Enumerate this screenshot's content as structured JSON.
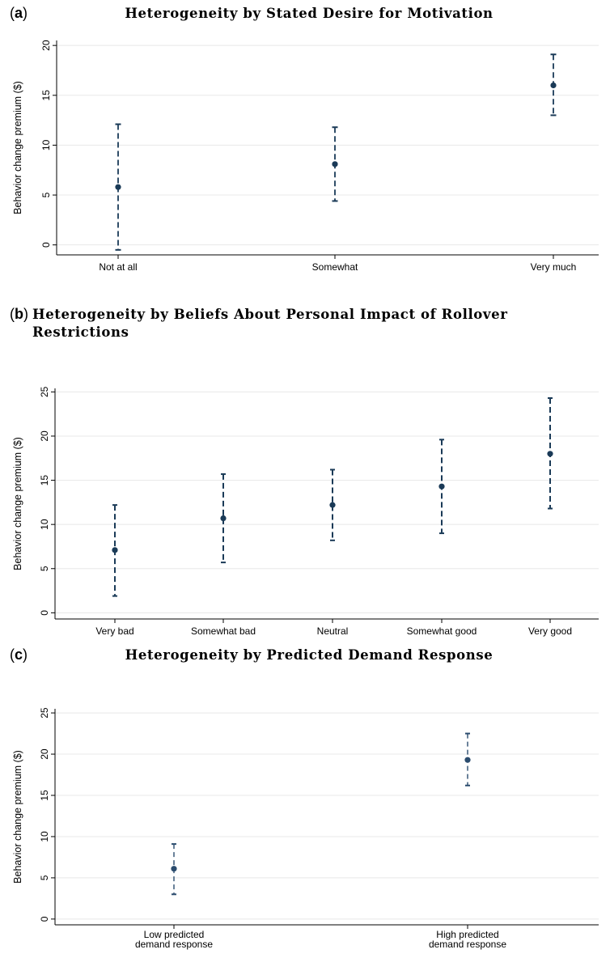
{
  "chart_data": [
    {
      "panel": "(a)",
      "type": "scatter",
      "title": "Heterogeneity by Stated Desire for Motivation",
      "ylabel": "Behavior change premium ($)",
      "xlabel": "",
      "categories": [
        "Not at all",
        "Somewhat",
        "Very much"
      ],
      "values": [
        5.8,
        8.1,
        16.0
      ],
      "ci_low": [
        -0.5,
        4.4,
        13.0
      ],
      "ci_high": [
        12.1,
        11.8,
        19.1
      ],
      "ylim": [
        -1,
        20.5
      ],
      "yticks": [
        0,
        5,
        10,
        15,
        20
      ],
      "grid": true,
      "color": "#1a3a57"
    },
    {
      "panel": "(b)",
      "type": "scatter",
      "title": "Heterogeneity by Beliefs About Personal Impact of Rollover Restrictions",
      "ylabel": "Behavior change premium ($)",
      "xlabel": "",
      "categories": [
        "Very bad",
        "Somewhat bad",
        "Neutral",
        "Somewhat good",
        "Very good"
      ],
      "values": [
        7.1,
        10.7,
        12.2,
        14.3,
        18.0
      ],
      "ci_low": [
        1.9,
        5.7,
        8.2,
        9.0,
        11.8
      ],
      "ci_high": [
        12.2,
        15.7,
        16.2,
        19.6,
        24.3
      ],
      "ylim": [
        -0.7,
        25.4
      ],
      "yticks": [
        0,
        5,
        10,
        15,
        20,
        25
      ],
      "grid": true,
      "color": "#1a3a57"
    },
    {
      "panel": "(c)",
      "type": "scatter",
      "title": "Heterogeneity by Predicted Demand Response",
      "ylabel": "Behavior change premium ($)",
      "xlabel": "",
      "categories": [
        "Low predicted demand response",
        "High predicted demand response"
      ],
      "values": [
        6.1,
        19.3
      ],
      "ci_low": [
        3.0,
        16.2
      ],
      "ci_high": [
        9.1,
        22.5
      ],
      "ylim": [
        -0.7,
        25.5
      ],
      "yticks": [
        0,
        5,
        10,
        15,
        20,
        25
      ],
      "grid": true,
      "color": "#2b4c6e"
    }
  ]
}
